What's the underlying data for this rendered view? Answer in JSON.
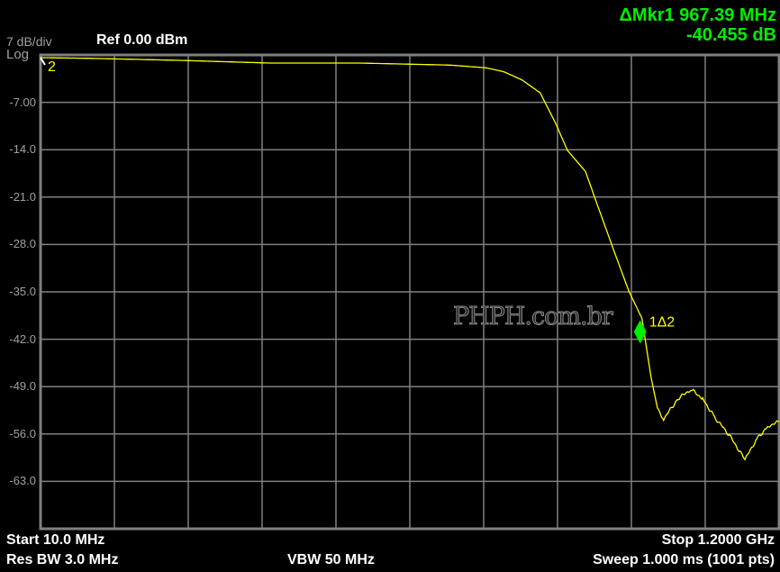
{
  "header": {
    "scale": "7 dB/div",
    "scale_type": "Log",
    "ref_level": "Ref 0.00 dBm",
    "marker_freq": "ΔMkr1 967.39 MHz",
    "marker_value": "-40.455 dB"
  },
  "footer": {
    "start": "Start 10.0 MHz",
    "stop": "Stop 1.2000 GHz",
    "res_bw": "Res BW 3.0 MHz",
    "vbw": "VBW 50 MHz",
    "sweep": "Sweep  1.000 ms (1001 pts)"
  },
  "watermark": "PHPH.com.br",
  "colors": {
    "trace": "#ffff00",
    "marker": "#00ee00",
    "grid": "#808080",
    "background": "#000000"
  },
  "chart_data": {
    "type": "line",
    "xlabel": "",
    "ylabel": "",
    "xlim": [
      10,
      1200
    ],
    "ylim": [
      -70,
      0
    ],
    "x_unit": "MHz",
    "y_unit": "dBm",
    "grid": true,
    "ytick_labels": [
      "-7.00",
      "-14.0",
      "-21.0",
      "-28.0",
      "-35.0",
      "-42.0",
      "-49.0",
      "-56.0",
      "-63.0"
    ],
    "series": [
      {
        "x": [
          10,
          90,
          235,
          380,
          525,
          670,
          728,
          757,
          786,
          815,
          840,
          859,
          888,
          907,
          931,
          958,
          979,
          994,
          1004,
          1014,
          1037,
          1058,
          1077,
          1096,
          1120,
          1145,
          1164,
          1183,
          1200
        ],
        "y": [
          -0.4,
          -0.5,
          -0.8,
          -1.2,
          -1.2,
          -1.5,
          -1.9,
          -2.5,
          -3.7,
          -5.6,
          -10.1,
          -14.1,
          -17.2,
          -22.1,
          -28.2,
          -34.9,
          -38.9,
          -47.8,
          -52.2,
          -53.8,
          -50.8,
          -49.4,
          -50.8,
          -53.5,
          -56.2,
          -59.8,
          -56.7,
          -54.8,
          -54.2
        ]
      }
    ],
    "markers": [
      {
        "label": "2",
        "x": 10,
        "y": -0.4
      },
      {
        "label": "1Δ2",
        "x": 967.39,
        "y": -40.9
      }
    ]
  }
}
